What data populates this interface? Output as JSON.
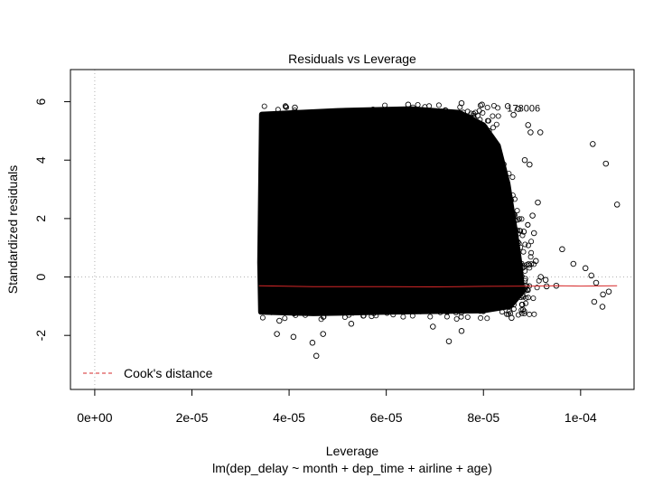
{
  "chart_data": {
    "type": "scatter",
    "title": "Residuals vs Leverage",
    "xlabel": "Leverage",
    "ylabel": "Standardized residuals",
    "subtitle": "lm(dep_delay ~ month + dep_time + airline + age)",
    "xlim": [
      -5e-06,
      0.000111
    ],
    "ylim": [
      -3.85,
      7.1
    ],
    "x_ticks": [
      0,
      2e-05,
      4e-05,
      6e-05,
      8e-05,
      0.0001
    ],
    "x_tick_labels": [
      "0e+00",
      "2e-05",
      "4e-05",
      "6e-05",
      "8e-05",
      "1e-04"
    ],
    "y_ticks": [
      -2,
      0,
      2,
      4,
      6
    ],
    "y_tick_labels": [
      "-2",
      "0",
      "2",
      "4",
      "6"
    ],
    "reference_lines": {
      "x": 0,
      "y": 0,
      "style": "dotted",
      "color": "#b3b3b3"
    },
    "dense_region": {
      "description": "solid mass of overlapping points",
      "x_range": [
        3.4e-05,
        8.95e-05
      ],
      "y_range": [
        -1.35,
        5.75
      ]
    },
    "outlier_points": [
      [
        0.0001025,
        4.55
      ],
      [
        0.0001052,
        3.88
      ],
      [
        0.0001075,
        2.48
      ],
      [
        0.000101,
        0.3
      ],
      [
        0.0001022,
        0.05
      ],
      [
        0.0001032,
        -0.2
      ],
      [
        0.0001046,
        -0.6
      ],
      [
        0.0001058,
        -0.5
      ],
      [
        0.0001045,
        -1.02
      ],
      [
        0.0001028,
        -0.85
      ],
      [
        9.85e-05,
        0.45
      ],
      [
        9.62e-05,
        0.95
      ],
      [
        9.5e-05,
        -0.3
      ],
      [
        9.3e-05,
        -0.32
      ],
      [
        9.18e-05,
        0.0
      ],
      [
        9.08e-05,
        0.55
      ],
      [
        9.04e-05,
        1.5
      ],
      [
        9.01e-05,
        2.1
      ],
      [
        9.12e-05,
        2.55
      ],
      [
        8.85e-05,
        4.0
      ],
      [
        8.95e-05,
        3.85
      ],
      [
        9.17e-05,
        4.95
      ],
      [
        8.97e-05,
        4.95
      ],
      [
        9.28e-05,
        -0.1
      ],
      [
        8.83e-05,
        1.55
      ],
      [
        8.5e-05,
        5.85
      ],
      [
        8.72e-05,
        5.75
      ],
      [
        8.62e-05,
        5.55
      ],
      [
        8.92e-05,
        5.2
      ],
      [
        4.56e-05,
        -2.7
      ],
      [
        4.48e-05,
        -2.25
      ],
      [
        4.09e-05,
        -2.05
      ],
      [
        7.29e-05,
        -2.2
      ],
      [
        4.7e-05,
        -1.95
      ],
      [
        3.8e-05,
        -1.5
      ],
      [
        5.28e-05,
        -1.6
      ],
      [
        6.96e-05,
        -1.7
      ],
      [
        7.55e-05,
        -1.85
      ],
      [
        3.75e-05,
        -1.95
      ],
      [
        8.58e-05,
        -1.4
      ],
      [
        8.8e-05,
        -0.95
      ],
      [
        4.12e-05,
        5.8
      ],
      [
        6.45e-05,
        5.9
      ],
      [
        7.55e-05,
        5.95
      ],
      [
        7.97e-05,
        5.9
      ]
    ],
    "labeled_point": {
      "x": 8.56e-05,
      "y": 5.78,
      "label": "178006"
    },
    "smoother": {
      "color": "#d62728",
      "x": [
        3.38e-05,
        4.5e-05,
        6e-05,
        7e-05,
        8e-05,
        9e-05,
        9.5e-05,
        0.0001,
        0.0001075
      ],
      "y": [
        -0.3,
        -0.33,
        -0.33,
        -0.34,
        -0.32,
        -0.31,
        -0.3,
        -0.31,
        -0.3
      ]
    },
    "legend": {
      "position": "bottom-left",
      "entries": [
        {
          "label": "Cook's distance",
          "style": "dashed",
          "color": "#d62728"
        }
      ]
    }
  }
}
